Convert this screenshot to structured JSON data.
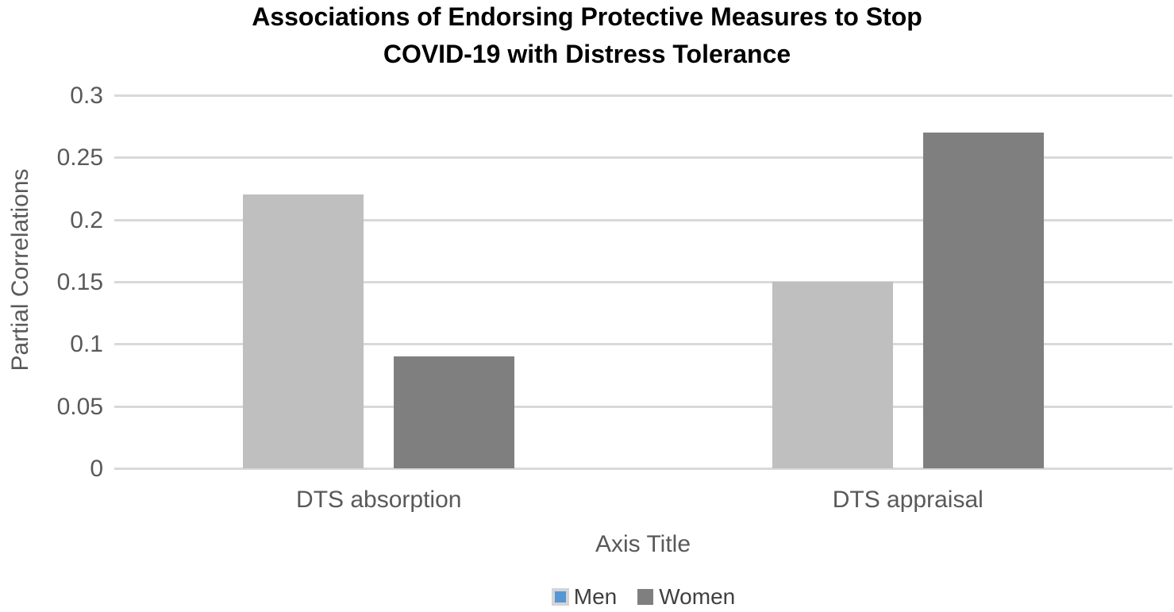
{
  "chart_data": {
    "type": "bar",
    "title": "Associations of Endorsing Protective Measures to Stop COVID-19 with Distress Tolerance",
    "title_lines": [
      "Associations of Endorsing Protective Measures to Stop",
      "COVID-19 with Distress Tolerance"
    ],
    "categories": [
      "DTS absorption",
      "DTS appraisal"
    ],
    "series": [
      {
        "name": "Men",
        "values": [
          0.22,
          0.15
        ],
        "bar_color": "#BFBFBF",
        "legend_color": "#5596D4",
        "legend_selected": true
      },
      {
        "name": "Women",
        "values": [
          0.09,
          0.27
        ],
        "bar_color": "#7F7F7F",
        "legend_color": "#7F7F7F",
        "legend_selected": false
      }
    ],
    "xlabel": "Axis Title",
    "ylabel": "Partial Correlations",
    "ylim": [
      0,
      0.3
    ],
    "ytick_step": 0.05,
    "yticks": [
      "0",
      "0.05",
      "0.1",
      "0.15",
      "0.2",
      "0.25",
      "0.3"
    ],
    "grid": true,
    "legend_position": "bottom"
  },
  "colors": {
    "gridline": "#D9D9D9",
    "axis_text": "#595959",
    "legend_text": "#404040",
    "title_text": "#000000",
    "legend_selection_highlight": "#D6D3D3",
    "background": "#FFFFFF"
  }
}
